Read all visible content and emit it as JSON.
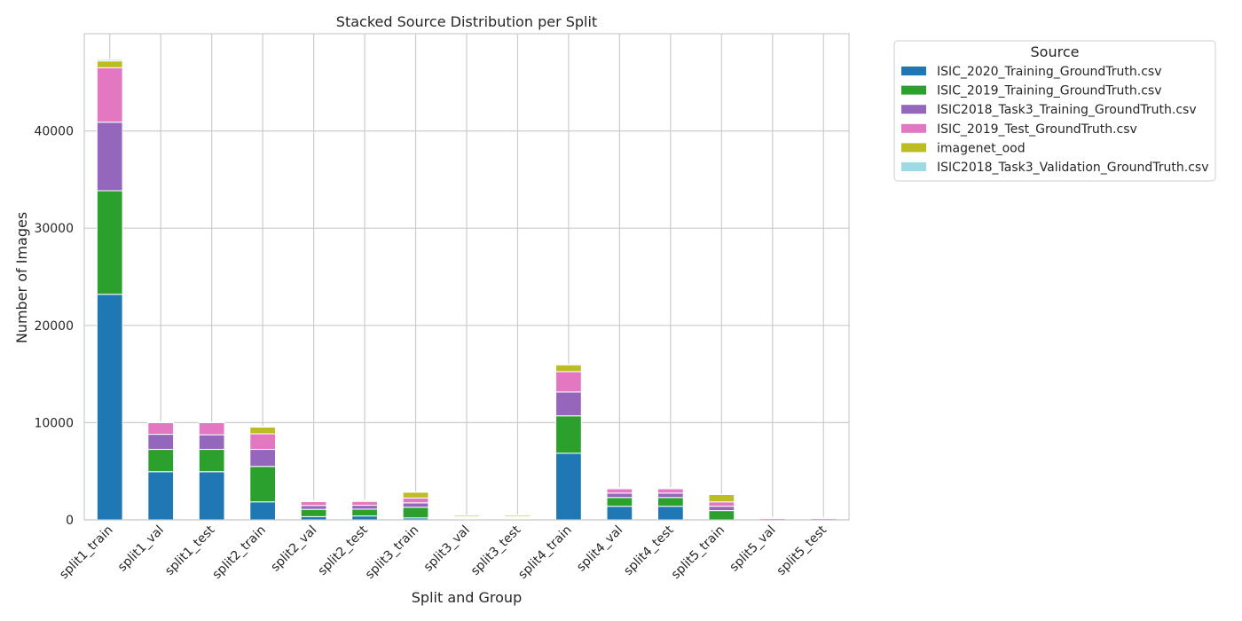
{
  "chart_data": {
    "type": "bar",
    "stacked": true,
    "title": "Stacked Source Distribution per Split",
    "xlabel": "Split and Group",
    "ylabel": "Number of Images",
    "ylim": [
      0,
      50000
    ],
    "yticks": [
      0,
      10000,
      20000,
      30000,
      40000
    ],
    "ytick_labels": [
      "0",
      "10000",
      "20000",
      "30000",
      "40000"
    ],
    "grid": true,
    "legend_title": "Source",
    "legend_position": "outside-right",
    "categories": [
      "split1_train",
      "split1_val",
      "split1_test",
      "split2_train",
      "split2_val",
      "split2_test",
      "split3_train",
      "split3_val",
      "split3_test",
      "split4_train",
      "split4_val",
      "split4_test",
      "split5_train",
      "split5_val",
      "split5_test"
    ],
    "series": [
      {
        "name": "ISIC_2020_Training_GroundTruth.csv",
        "color": "#1f77b4",
        "values": [
          23200,
          4950,
          4950,
          1850,
          330,
          400,
          200,
          50,
          50,
          6850,
          1400,
          1400,
          0,
          0,
          0
        ]
      },
      {
        "name": "ISIC_2019_Training_GroundTruth.csv",
        "color": "#2ca02c",
        "values": [
          10650,
          2300,
          2300,
          3650,
          750,
          700,
          1100,
          100,
          100,
          3850,
          900,
          900,
          950,
          0,
          0
        ]
      },
      {
        "name": "ISIC2018_Task3_Training_GroundTruth.csv",
        "color": "#9467bd",
        "values": [
          7050,
          1550,
          1500,
          1750,
          400,
          400,
          450,
          80,
          80,
          2450,
          450,
          450,
          450,
          0,
          0
        ]
      },
      {
        "name": "ISIC_2019_Test_GroundTruth.csv",
        "color": "#e377c2",
        "values": [
          5600,
          1200,
          1250,
          1600,
          400,
          400,
          500,
          100,
          100,
          2100,
          450,
          450,
          450,
          150,
          150
        ]
      },
      {
        "name": "imagenet_ood",
        "color": "#bcbd22",
        "values": [
          700,
          100,
          0,
          700,
          100,
          100,
          600,
          150,
          150,
          700,
          100,
          100,
          750,
          100,
          100
        ]
      },
      {
        "name": "ISIC2018_Task3_Validation_GroundTruth.csv",
        "color": "#9edae5",
        "values": [
          150,
          30,
          30,
          40,
          20,
          20,
          30,
          20,
          20,
          50,
          20,
          20,
          20,
          20,
          20
        ]
      }
    ]
  }
}
